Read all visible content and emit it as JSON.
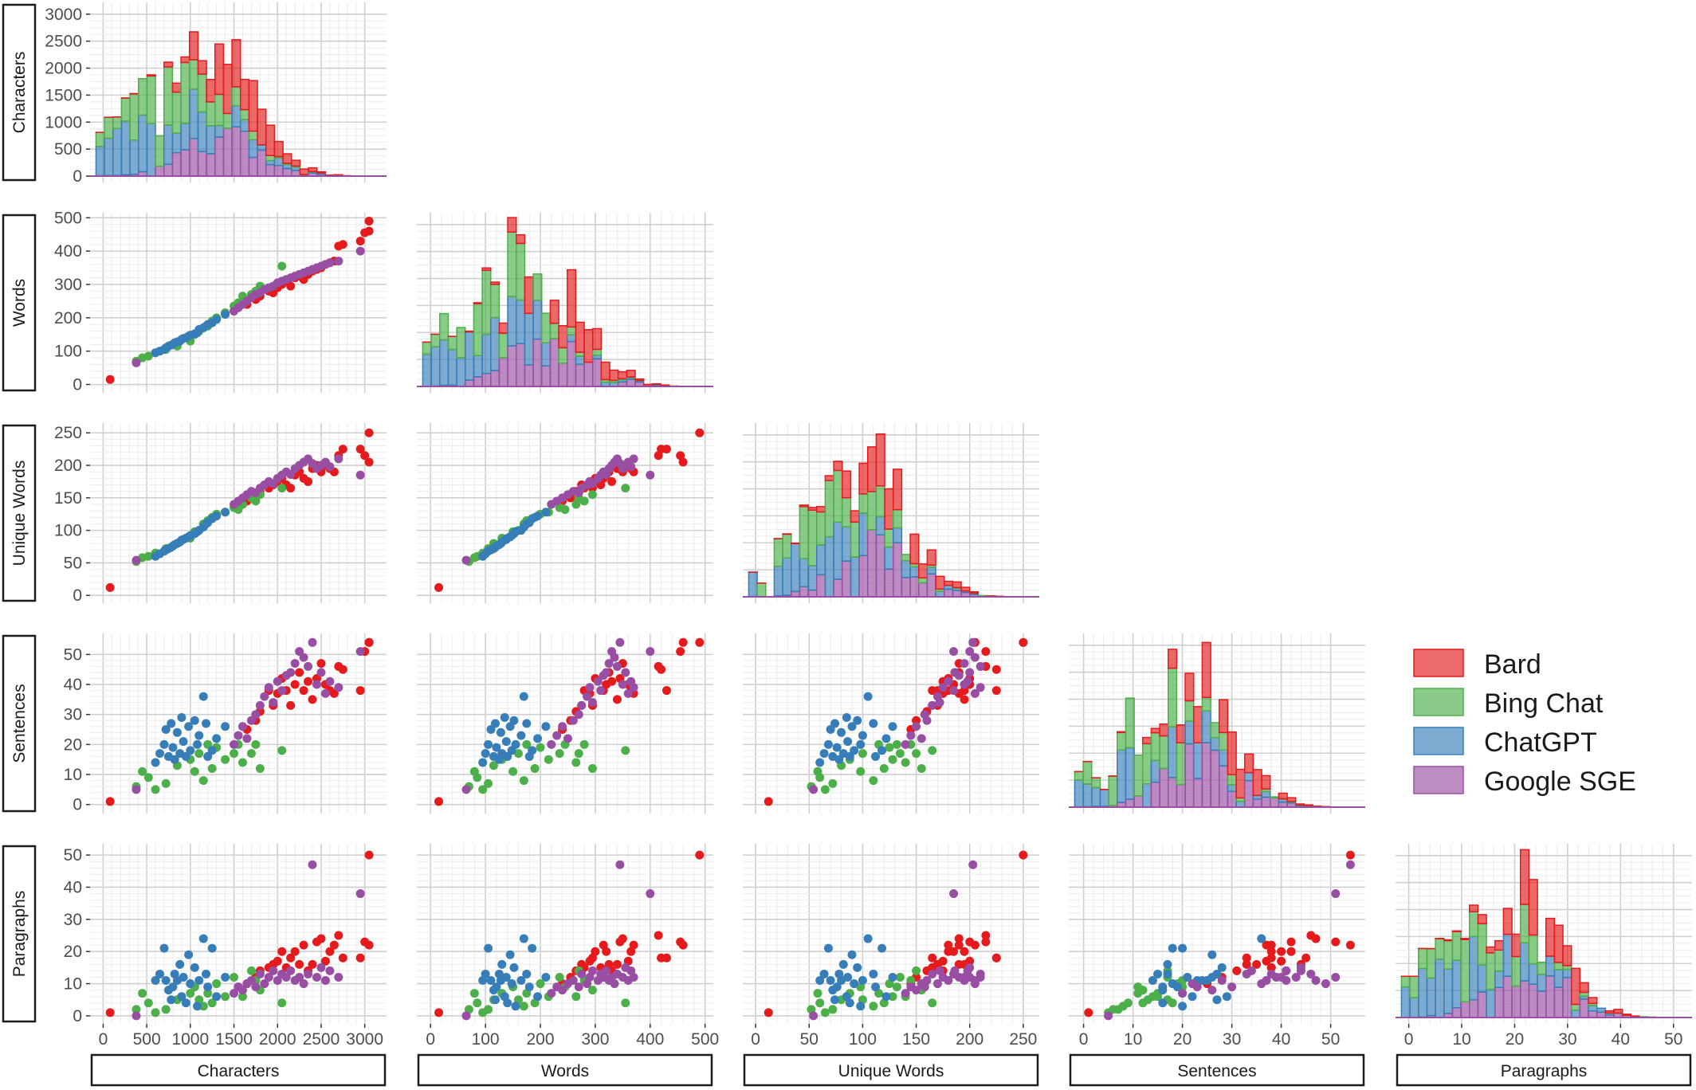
{
  "chart_data": {
    "type": "scatter",
    "variables": [
      {
        "key": "chars",
        "label": "Characters",
        "range": [
          -150,
          3250
        ],
        "ticks": [
          0,
          500,
          1000,
          1500,
          2000,
          2500,
          3000
        ]
      },
      {
        "key": "words",
        "label": "Words",
        "range": [
          -25,
          515
        ],
        "ticks": [
          0,
          100,
          200,
          300,
          400,
          500
        ]
      },
      {
        "key": "unique",
        "label": "Unique Words",
        "range": [
          -12,
          265
        ],
        "ticks": [
          0,
          50,
          100,
          150,
          200,
          250
        ]
      },
      {
        "key": "sentences",
        "label": "Sentences",
        "range": [
          -3,
          57
        ],
        "ticks": [
          0,
          10,
          20,
          30,
          40,
          50
        ]
      },
      {
        "key": "paragraphs",
        "label": "Paragraphs",
        "range": [
          -2.5,
          53.5
        ],
        "ticks": [
          0,
          10,
          20,
          30,
          40,
          50
        ]
      }
    ],
    "diag_y_ticks": {
      "label": [
        0,
        500,
        1000,
        1500,
        2000,
        2500,
        3000
      ],
      "range": [
        0,
        3100
      ]
    },
    "legend": {
      "position": "right",
      "entries": [
        {
          "name": "Bard",
          "color": "#E41A1C"
        },
        {
          "name": "Bing Chat",
          "color": "#4DAF4A"
        },
        {
          "name": "ChatGPT",
          "color": "#377EB8"
        },
        {
          "name": "Google SGE",
          "color": "#984EA3"
        }
      ]
    },
    "series": [
      {
        "name": "Bard",
        "color": "#E41A1C",
        "points": [
          [
            80,
            15,
            12,
            1,
            1
          ],
          [
            1650,
            240,
            145,
            25,
            10
          ],
          [
            1750,
            255,
            150,
            28,
            12
          ],
          [
            1800,
            265,
            160,
            31,
            14
          ],
          [
            1900,
            280,
            165,
            38,
            15
          ],
          [
            1950,
            275,
            170,
            33,
            16
          ],
          [
            2000,
            290,
            175,
            37,
            17
          ],
          [
            2050,
            300,
            180,
            42,
            20
          ],
          [
            2100,
            310,
            170,
            38,
            15
          ],
          [
            2150,
            295,
            165,
            33,
            18
          ],
          [
            2200,
            320,
            185,
            40,
            20
          ],
          [
            2250,
            325,
            190,
            44,
            16
          ],
          [
            2300,
            315,
            180,
            38,
            22
          ],
          [
            2350,
            330,
            175,
            41,
            14
          ],
          [
            2400,
            340,
            195,
            35,
            16
          ],
          [
            2450,
            345,
            200,
            42,
            23
          ],
          [
            2500,
            350,
            190,
            47,
            24
          ],
          [
            2550,
            360,
            200,
            40,
            17
          ],
          [
            2600,
            365,
            195,
            38,
            20
          ],
          [
            2650,
            370,
            190,
            37,
            22
          ],
          [
            2700,
            415,
            215,
            46,
            25
          ],
          [
            2750,
            420,
            225,
            45,
            18
          ],
          [
            2950,
            430,
            225,
            38,
            18
          ],
          [
            3000,
            455,
            215,
            51,
            23
          ],
          [
            3050,
            460,
            205,
            54,
            22
          ],
          [
            3050,
            490,
            250,
            54,
            50
          ]
        ]
      },
      {
        "name": "Bing Chat",
        "color": "#4DAF4A",
        "points": [
          [
            380,
            70,
            52,
            6,
            2
          ],
          [
            450,
            80,
            58,
            11,
            7
          ],
          [
            520,
            85,
            60,
            9,
            4
          ],
          [
            600,
            95,
            65,
            5,
            1
          ],
          [
            720,
            105,
            72,
            7,
            2
          ],
          [
            850,
            115,
            80,
            13,
            5
          ],
          [
            1000,
            130,
            88,
            15,
            7
          ],
          [
            1050,
            150,
            98,
            11,
            9
          ],
          [
            1100,
            160,
            100,
            17,
            5
          ],
          [
            1150,
            170,
            110,
            8,
            3
          ],
          [
            1200,
            175,
            115,
            20,
            7
          ],
          [
            1250,
            190,
            120,
            12,
            4
          ],
          [
            1300,
            200,
            125,
            19,
            10
          ],
          [
            1400,
            215,
            128,
            15,
            6
          ],
          [
            1500,
            235,
            135,
            17,
            12
          ],
          [
            1550,
            245,
            132,
            20,
            9
          ],
          [
            1600,
            265,
            140,
            14,
            6
          ],
          [
            1700,
            270,
            150,
            17,
            14
          ],
          [
            1750,
            280,
            145,
            20,
            11
          ],
          [
            1800,
            295,
            155,
            12,
            8
          ],
          [
            2050,
            355,
            165,
            18,
            4
          ]
        ]
      },
      {
        "name": "ChatGPT",
        "color": "#377EB8",
        "points": [
          [
            600,
            95,
            60,
            14,
            11
          ],
          [
            650,
            100,
            64,
            17,
            13
          ],
          [
            700,
            105,
            68,
            20,
            21
          ],
          [
            720,
            110,
            70,
            25,
            11
          ],
          [
            750,
            115,
            72,
            16,
            8
          ],
          [
            780,
            118,
            74,
            27,
            5
          ],
          [
            800,
            120,
            76,
            19,
            9
          ],
          [
            820,
            125,
            78,
            15,
            13
          ],
          [
            850,
            128,
            80,
            24,
            11
          ],
          [
            880,
            130,
            82,
            17,
            16
          ],
          [
            900,
            135,
            85,
            29,
            6
          ],
          [
            920,
            138,
            86,
            21,
            12
          ],
          [
            950,
            140,
            88,
            16,
            4
          ],
          [
            980,
            145,
            90,
            26,
            19
          ],
          [
            1000,
            148,
            92,
            18,
            10
          ],
          [
            1050,
            152,
            95,
            28,
            15
          ],
          [
            1080,
            155,
            98,
            20,
            3
          ],
          [
            1100,
            165,
            100,
            23,
            11
          ],
          [
            1150,
            170,
            105,
            36,
            24
          ],
          [
            1180,
            175,
            110,
            27,
            13
          ],
          [
            1200,
            180,
            112,
            16,
            9
          ],
          [
            1250,
            185,
            118,
            18,
            21
          ],
          [
            1300,
            195,
            122,
            22,
            6
          ],
          [
            1400,
            210,
            128,
            26,
            12
          ]
        ]
      },
      {
        "name": "Google SGE",
        "color": "#984EA3",
        "points": [
          [
            380,
            65,
            54,
            5,
            0
          ],
          [
            1500,
            220,
            140,
            20,
            7
          ],
          [
            1550,
            230,
            145,
            23,
            9
          ],
          [
            1600,
            240,
            150,
            26,
            8
          ],
          [
            1650,
            250,
            155,
            22,
            10
          ],
          [
            1700,
            260,
            160,
            28,
            11
          ],
          [
            1750,
            270,
            158,
            30,
            9
          ],
          [
            1800,
            275,
            165,
            33,
            13
          ],
          [
            1850,
            285,
            170,
            36,
            10
          ],
          [
            1900,
            290,
            175,
            39,
            12
          ],
          [
            1950,
            295,
            172,
            34,
            14
          ],
          [
            2000,
            305,
            180,
            41,
            11
          ],
          [
            2050,
            310,
            185,
            38,
            13
          ],
          [
            2100,
            315,
            190,
            43,
            12
          ],
          [
            2150,
            320,
            186,
            44,
            14
          ],
          [
            2200,
            325,
            195,
            47,
            11
          ],
          [
            2250,
            330,
            200,
            51,
            12
          ],
          [
            2300,
            335,
            205,
            49,
            10
          ],
          [
            2350,
            340,
            210,
            46,
            13
          ],
          [
            2400,
            345,
            203,
            54,
            47
          ],
          [
            2450,
            350,
            195,
            40,
            12
          ],
          [
            2500,
            355,
            200,
            44,
            15
          ],
          [
            2550,
            360,
            205,
            37,
            11
          ],
          [
            2600,
            365,
            198,
            41,
            14
          ],
          [
            2700,
            370,
            210,
            39,
            12
          ],
          [
            2950,
            400,
            185,
            51,
            38
          ]
        ]
      }
    ]
  }
}
